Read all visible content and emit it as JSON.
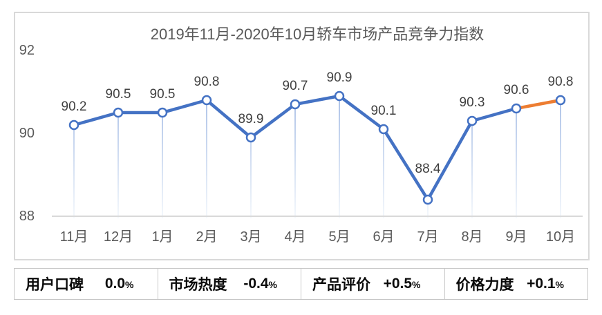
{
  "chart_data": {
    "type": "line",
    "title": "2019年11月-2020年10月轿车市场产品竞争力指数",
    "categories": [
      "11月",
      "12月",
      "1月",
      "2月",
      "3月",
      "4月",
      "5月",
      "6月",
      "7月",
      "8月",
      "9月",
      "10月"
    ],
    "values": [
      90.2,
      90.5,
      90.5,
      90.8,
      89.9,
      90.7,
      90.9,
      90.1,
      88.4,
      90.3,
      90.6,
      90.8
    ],
    "data_labels": [
      "90.2",
      "90.5",
      "90.5",
      "90.8",
      "89.9",
      "90.7",
      "90.9",
      "90.1",
      "88.4",
      "90.3",
      "90.6",
      "90.8"
    ],
    "y_ticks": [
      92,
      90,
      88
    ],
    "ylim": [
      88,
      92.7
    ],
    "xlabel": "",
    "ylabel": "",
    "grid": false,
    "legend": "none",
    "markers": "circle-open",
    "notes": "single series; final segment (9月→10月) drawn in orange; light-blue drop lines from each point to baseline",
    "colors": {
      "line": "#4472C4",
      "final_segment": "#ED7D31",
      "marker_fill": "#FFFFFF",
      "marker_stroke": "#4472C4",
      "drop_line_top": "#A9BFE6",
      "drop_line_bottom": "#F4F8FC",
      "axis_line": "#D9D9D9",
      "axis_text": "#595959",
      "data_label_text": "#404040"
    }
  },
  "summary_bar": {
    "cells": [
      {
        "label": "用户口碑",
        "value": "0.0",
        "unit": "%"
      },
      {
        "label": "市场热度",
        "value": "-0.4",
        "unit": "%"
      },
      {
        "label": "产品评价",
        "value": "+0.5",
        "unit": "%"
      },
      {
        "label": "价格力度",
        "value": "+0.1",
        "unit": "%"
      }
    ]
  }
}
